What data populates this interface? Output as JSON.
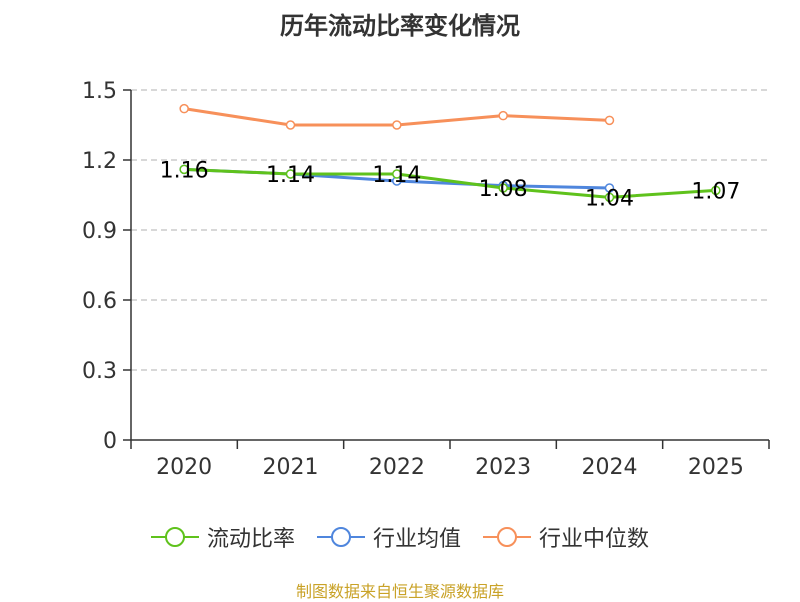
{
  "chart_data": {
    "type": "line",
    "title": "历年流动比率变化情况",
    "xlabel": "",
    "ylabel": "",
    "categories": [
      "2020",
      "2021",
      "2022",
      "2023",
      "2024",
      "2025"
    ],
    "ylim": [
      0,
      1.5
    ],
    "yticks": [
      "0",
      "0.3",
      "0.6",
      "0.9",
      "1.2",
      "1.5"
    ],
    "grid": true,
    "legend_position": "bottom",
    "series": [
      {
        "name": "流动比率",
        "color": "#5fc21c",
        "values": [
          1.16,
          1.14,
          1.14,
          1.08,
          1.04,
          1.07
        ],
        "labels": [
          "1.16",
          "1.14",
          "1.14",
          "1.08",
          "1.04",
          "1.07"
        ]
      },
      {
        "name": "行业均值",
        "color": "#4f86dd",
        "values": [
          1.16,
          1.14,
          1.11,
          1.09,
          1.08,
          null
        ]
      },
      {
        "name": "行业中位数",
        "color": "#f7905a",
        "values": [
          1.42,
          1.35,
          1.35,
          1.39,
          1.37,
          null
        ]
      }
    ]
  },
  "source_text": "制图数据来自恒生聚源数据库"
}
